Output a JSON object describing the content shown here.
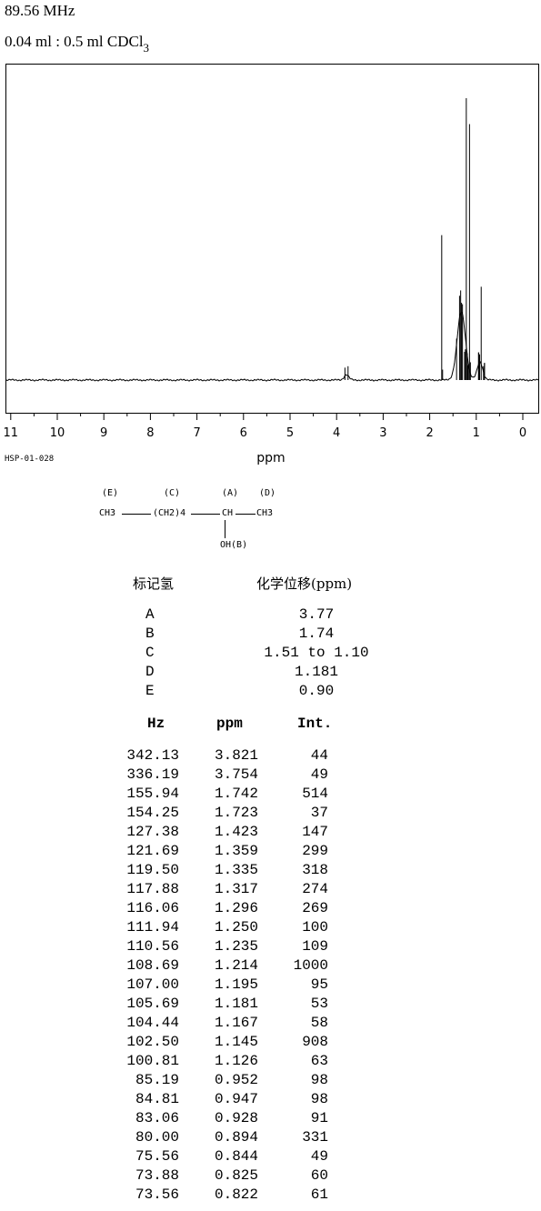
{
  "header": {
    "frequency": "89.56 MHz",
    "sample_main": "0.04 ml : 0.5 ml CDCl",
    "sample_sub": "3"
  },
  "spectrum_code": "HSP-01-028",
  "structure": {
    "labels": [
      "(E)",
      "(C)",
      "(A)",
      "(D)"
    ],
    "groups": [
      "CH3",
      "(CH2)4",
      "CH",
      "CH3"
    ],
    "hydroxyl": "OH(B)"
  },
  "shift_table": {
    "header_label": "标记氢",
    "header_shift": "化学位移(ppm)",
    "rows": [
      {
        "label": "A",
        "shift": "3.77"
      },
      {
        "label": "B",
        "shift": "1.74"
      },
      {
        "label": "C",
        "shift": "1.51 to 1.10"
      },
      {
        "label": "D",
        "shift": "1.181"
      },
      {
        "label": "E",
        "shift": "0.90"
      }
    ]
  },
  "peak_table": {
    "columns": [
      "Hz",
      "ppm",
      "Int."
    ],
    "rows": [
      [
        "342.13",
        "3.821",
        "44"
      ],
      [
        "336.19",
        "3.754",
        "49"
      ],
      [
        "155.94",
        "1.742",
        "514"
      ],
      [
        "154.25",
        "1.723",
        "37"
      ],
      [
        "127.38",
        "1.423",
        "147"
      ],
      [
        "121.69",
        "1.359",
        "299"
      ],
      [
        "119.50",
        "1.335",
        "318"
      ],
      [
        "117.88",
        "1.317",
        "274"
      ],
      [
        "116.06",
        "1.296",
        "269"
      ],
      [
        "111.94",
        "1.250",
        "100"
      ],
      [
        "110.56",
        "1.235",
        "109"
      ],
      [
        "108.69",
        "1.214",
        "1000"
      ],
      [
        "107.00",
        "1.195",
        "95"
      ],
      [
        "105.69",
        "1.181",
        "53"
      ],
      [
        "104.44",
        "1.167",
        "58"
      ],
      [
        "102.50",
        "1.145",
        "908"
      ],
      [
        "100.81",
        "1.126",
        "63"
      ],
      [
        "85.19",
        "0.952",
        "98"
      ],
      [
        "84.81",
        "0.947",
        "98"
      ],
      [
        "83.06",
        "0.928",
        "91"
      ],
      [
        "80.00",
        "0.894",
        "331"
      ],
      [
        "75.56",
        "0.844",
        "49"
      ],
      [
        "73.88",
        "0.825",
        "60"
      ],
      [
        "73.56",
        "0.822",
        "61"
      ]
    ]
  },
  "chart_data": {
    "type": "line",
    "xlabel": "ppm",
    "xlim": [
      11,
      0
    ],
    "x_ticks": [
      11,
      10,
      9,
      8,
      7,
      6,
      5,
      4,
      3,
      2,
      1,
      0
    ],
    "x_tick_labels": [
      "11",
      "10",
      "9",
      "8",
      "7",
      "6",
      "5",
      "4",
      "3",
      "2",
      "1",
      "0"
    ],
    "ylim": [
      0,
      1100
    ],
    "peaks_ppm": [
      3.821,
      3.754,
      1.742,
      1.723,
      1.423,
      1.359,
      1.335,
      1.317,
      1.296,
      1.25,
      1.235,
      1.214,
      1.195,
      1.181,
      1.167,
      1.145,
      1.126,
      0.952,
      0.947,
      0.928,
      0.894,
      0.844,
      0.825,
      0.822
    ],
    "peaks_intensity": [
      44,
      49,
      514,
      37,
      147,
      299,
      318,
      274,
      269,
      100,
      109,
      1000,
      95,
      53,
      58,
      908,
      63,
      98,
      98,
      91,
      331,
      49,
      60,
      61
    ],
    "grid": false
  }
}
